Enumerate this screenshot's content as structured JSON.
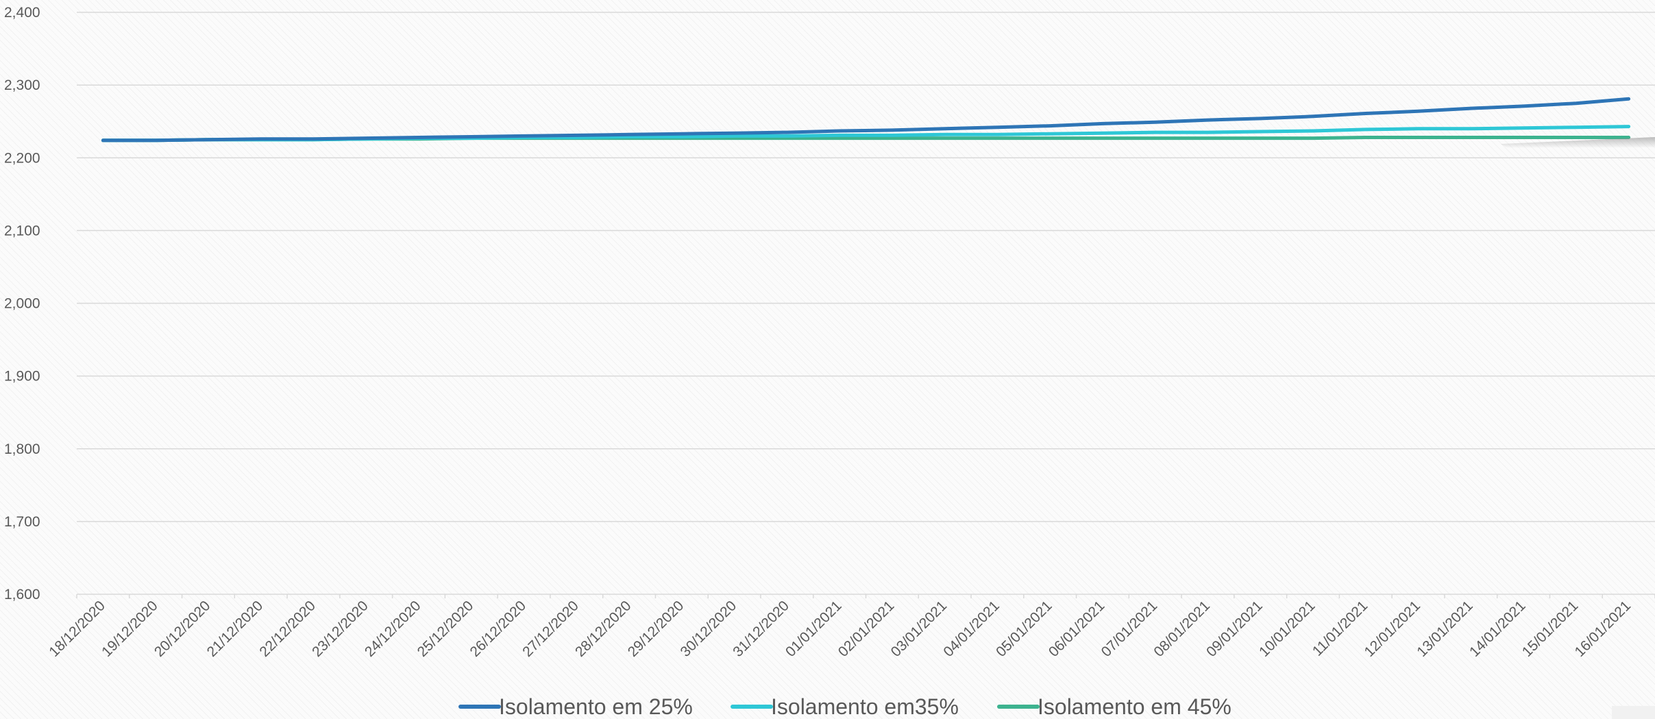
{
  "chart_data": {
    "type": "line",
    "title": "",
    "xlabel": "",
    "ylabel": "",
    "ylim": [
      1600,
      2400
    ],
    "yticks": [
      1600,
      1700,
      1800,
      1900,
      2000,
      2100,
      2200,
      2300,
      2400
    ],
    "ytick_labels": [
      "1,600",
      "1,700",
      "1,800",
      "1,900",
      "2,000",
      "2,100",
      "2,200",
      "2,300",
      "2,400"
    ],
    "grid": true,
    "legend_position": "bottom",
    "x": [
      "18/12/2020",
      "19/12/2020",
      "20/12/2020",
      "21/12/2020",
      "22/12/2020",
      "23/12/2020",
      "24/12/2020",
      "25/12/2020",
      "26/12/2020",
      "27/12/2020",
      "28/12/2020",
      "29/12/2020",
      "30/12/2020",
      "31/12/2020",
      "01/01/2021",
      "02/01/2021",
      "03/01/2021",
      "04/01/2021",
      "05/01/2021",
      "06/01/2021",
      "07/01/2021",
      "08/01/2021",
      "09/01/2021",
      "10/01/2021",
      "11/01/2021",
      "12/01/2021",
      "13/01/2021",
      "14/01/2021",
      "15/01/2021",
      "16/01/2021"
    ],
    "series": [
      {
        "name": "Isolamento em 25%",
        "color": "#2e75b6",
        "values": [
          2224,
          2224,
          2225,
          2226,
          2226,
          2227,
          2228,
          2229,
          2230,
          2231,
          2232,
          2233,
          2234,
          2235,
          2237,
          2238,
          2240,
          2242,
          2244,
          2247,
          2249,
          2252,
          2254,
          2257,
          2261,
          2264,
          2268,
          2271,
          2275,
          2281
        ]
      },
      {
        "name": "Isolamento em35%",
        "color": "#2ec7d6",
        "values": [
          2224,
          2224,
          2225,
          2225,
          2225,
          2226,
          2227,
          2227,
          2228,
          2228,
          2229,
          2229,
          2230,
          2230,
          2231,
          2231,
          2232,
          2232,
          2233,
          2234,
          2235,
          2235,
          2236,
          2237,
          2239,
          2240,
          2240,
          2241,
          2242,
          2243
        ]
      },
      {
        "name": "Isolamento em 45%",
        "color": "#3db38f",
        "values": [
          2224,
          2224,
          2225,
          2225,
          2225,
          2226,
          2226,
          2227,
          2227,
          2227,
          2227,
          2227,
          2227,
          2227,
          2227,
          2227,
          2227,
          2227,
          2227,
          2227,
          2227,
          2227,
          2227,
          2227,
          2228,
          2228,
          2228,
          2228,
          2228,
          2228
        ]
      }
    ]
  }
}
